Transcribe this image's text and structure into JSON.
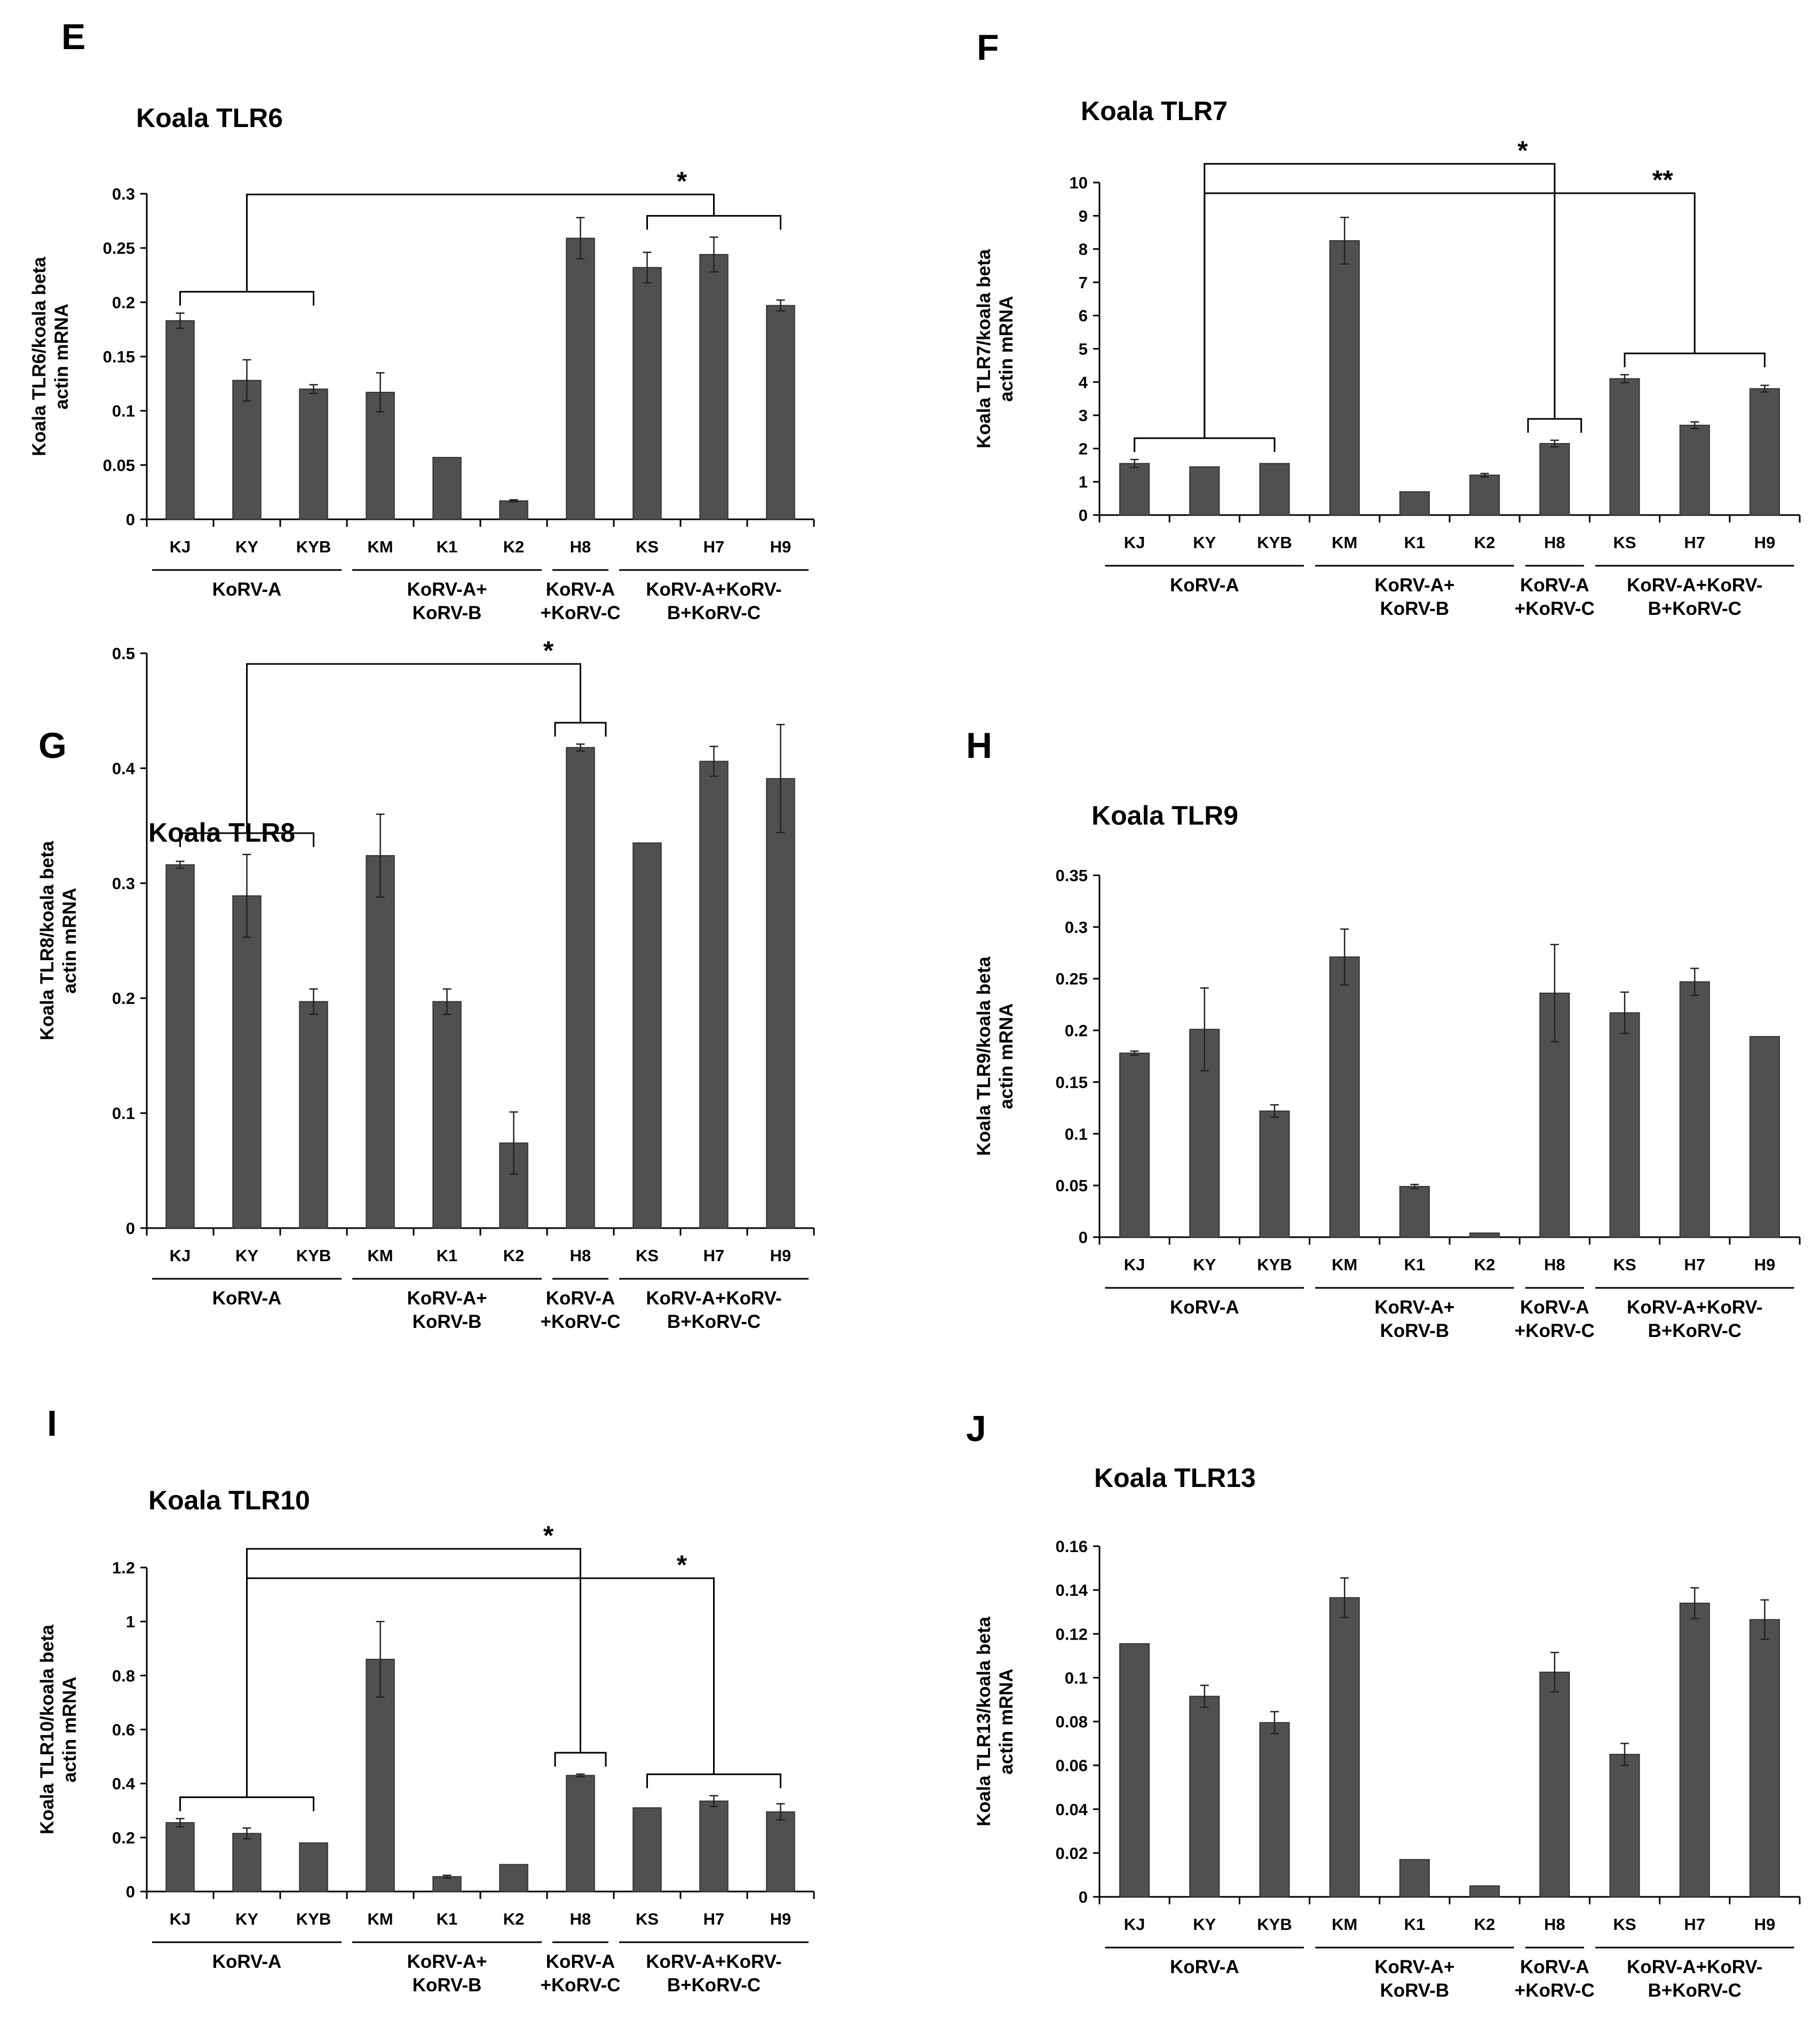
{
  "chart_data": [
    {
      "panel": "E",
      "type": "bar",
      "title": "Koala TLR6",
      "ylabel": [
        "Koala TLR6/koala beta",
        "actin mRNA"
      ],
      "xlabel": "",
      "categories": [
        "KJ",
        "KY",
        "KYB",
        "KM",
        "K1",
        "K2",
        "H8",
        "KS",
        "H7",
        "H9"
      ],
      "values": [
        0.183,
        0.128,
        0.12,
        0.117,
        0.057,
        0.017,
        0.259,
        0.232,
        0.244,
        0.197
      ],
      "errors": [
        0.007,
        0.019,
        0.004,
        0.018,
        0.0,
        0.001,
        0.019,
        0.014,
        0.016,
        0.005
      ],
      "ylim": [
        0,
        0.3
      ],
      "yticks": [
        0,
        0.05,
        0.1,
        0.15,
        0.2,
        0.25,
        0.3
      ],
      "ytick_labels": [
        "0",
        "0.05",
        "0.1",
        "0.15",
        "0.2",
        "0.25",
        "0.3"
      ],
      "groups": [
        {
          "lines": [
            "KoRV-A"
          ],
          "start": 0,
          "end": 2
        },
        {
          "lines": [
            "KoRV-A+",
            "KoRV-B"
          ],
          "start": 3,
          "end": 5
        },
        {
          "lines": [
            "KoRV-A",
            "+KoRV-C"
          ],
          "start": 6,
          "end": 6
        },
        {
          "lines": [
            "KoRV-A+KoRV-",
            "B+KoRV-C"
          ],
          "start": 7,
          "end": 9
        }
      ],
      "significance": [
        {
          "label": "*",
          "from": [
            0,
            2
          ],
          "to": [
            7,
            9
          ]
        }
      ]
    },
    {
      "panel": "F",
      "type": "bar",
      "title": "Koala TLR7",
      "ylabel": [
        "Koala TLR7/koala beta",
        "actin mRNA"
      ],
      "xlabel": "",
      "categories": [
        "KJ",
        "KY",
        "KYB",
        "KM",
        "K1",
        "K2",
        "H8",
        "KS",
        "H7",
        "H9"
      ],
      "values": [
        1.55,
        1.45,
        1.55,
        8.25,
        0.7,
        1.2,
        2.15,
        4.1,
        2.7,
        3.8
      ],
      "errors": [
        0.12,
        0.0,
        0.0,
        0.7,
        0.0,
        0.05,
        0.1,
        0.12,
        0.1,
        0.1
      ],
      "ylim": [
        0,
        10
      ],
      "yticks": [
        0,
        1,
        2,
        3,
        4,
        5,
        6,
        7,
        8,
        9,
        10
      ],
      "ytick_labels": [
        "0",
        "1",
        "2",
        "3",
        "4",
        "5",
        "6",
        "7",
        "8",
        "9",
        "10"
      ],
      "groups": [
        {
          "lines": [
            "KoRV-A"
          ],
          "start": 0,
          "end": 2
        },
        {
          "lines": [
            "KoRV-A+",
            "KoRV-B"
          ],
          "start": 3,
          "end": 5
        },
        {
          "lines": [
            "KoRV-A",
            "+KoRV-C"
          ],
          "start": 6,
          "end": 6
        },
        {
          "lines": [
            "KoRV-A+KoRV-",
            "B+KoRV-C"
          ],
          "start": 7,
          "end": 9
        }
      ],
      "significance": [
        {
          "label": "**",
          "from": [
            0,
            2
          ],
          "to": [
            7,
            9
          ]
        },
        {
          "label": "*",
          "from": [
            0,
            2
          ],
          "to": [
            6,
            6
          ]
        }
      ]
    },
    {
      "panel": "G",
      "type": "bar",
      "title": "Koala TLR8",
      "ylabel": [
        "Koala TLR8/koala beta",
        "actin mRNA"
      ],
      "xlabel": "",
      "categories": [
        "KJ",
        "KY",
        "KYB",
        "KM",
        "K1",
        "K2",
        "H8",
        "KS",
        "H7",
        "H9"
      ],
      "values": [
        0.316,
        0.289,
        0.197,
        0.324,
        0.197,
        0.074,
        0.418,
        0.335,
        0.406,
        0.391
      ],
      "errors": [
        0.003,
        0.036,
        0.011,
        0.036,
        0.011,
        0.027,
        0.003,
        0.0,
        0.013,
        0.047
      ],
      "ylim": [
        0,
        0.5
      ],
      "yticks": [
        0,
        0.1,
        0.2,
        0.3,
        0.4,
        0.5
      ],
      "ytick_labels": [
        "0",
        "0.1",
        "0.2",
        "0.3",
        "0.4",
        "0.5"
      ],
      "groups": [
        {
          "lines": [
            "KoRV-A"
          ],
          "start": 0,
          "end": 2
        },
        {
          "lines": [
            "KoRV-A+",
            "KoRV-B"
          ],
          "start": 3,
          "end": 5
        },
        {
          "lines": [
            "KoRV-A",
            "+KoRV-C"
          ],
          "start": 6,
          "end": 6
        },
        {
          "lines": [
            "KoRV-A+KoRV-",
            "B+KoRV-C"
          ],
          "start": 7,
          "end": 9
        }
      ],
      "significance": [
        {
          "label": "*",
          "from": [
            0,
            2
          ],
          "to": [
            6,
            6
          ]
        }
      ]
    },
    {
      "panel": "H",
      "type": "bar",
      "title": "Koala TLR9",
      "ylabel": [
        "Koala TLR9/koala beta",
        "actin mRNA"
      ],
      "xlabel": "",
      "categories": [
        "KJ",
        "KY",
        "KYB",
        "KM",
        "K1",
        "K2",
        "H8",
        "KS",
        "H7",
        "H9"
      ],
      "values": [
        0.178,
        0.201,
        0.122,
        0.271,
        0.049,
        0.004,
        0.236,
        0.217,
        0.247,
        0.194
      ],
      "errors": [
        0.002,
        0.04,
        0.006,
        0.027,
        0.002,
        0.0,
        0.047,
        0.02,
        0.013,
        0.0
      ],
      "ylim": [
        0,
        0.35
      ],
      "yticks": [
        0,
        0.05,
        0.1,
        0.15,
        0.2,
        0.25,
        0.3,
        0.35
      ],
      "ytick_labels": [
        "0",
        "0.05",
        "0.1",
        "0.15",
        "0.2",
        "0.25",
        "0.3",
        "0.35"
      ],
      "groups": [
        {
          "lines": [
            "KoRV-A"
          ],
          "start": 0,
          "end": 2
        },
        {
          "lines": [
            "KoRV-A+",
            "KoRV-B"
          ],
          "start": 3,
          "end": 5
        },
        {
          "lines": [
            "KoRV-A",
            "+KoRV-C"
          ],
          "start": 6,
          "end": 6
        },
        {
          "lines": [
            "KoRV-A+KoRV-",
            "B+KoRV-C"
          ],
          "start": 7,
          "end": 9
        }
      ],
      "significance": []
    },
    {
      "panel": "I",
      "type": "bar",
      "title": "Koala TLR10",
      "ylabel": [
        "Koala TLR10/koala beta",
        "actin mRNA"
      ],
      "xlabel": "",
      "categories": [
        "KJ",
        "KY",
        "KYB",
        "KM",
        "K1",
        "K2",
        "H8",
        "KS",
        "H7",
        "H9"
      ],
      "values": [
        0.255,
        0.215,
        0.18,
        0.86,
        0.055,
        0.1,
        0.43,
        0.31,
        0.335,
        0.295
      ],
      "errors": [
        0.015,
        0.02,
        0.0,
        0.14,
        0.005,
        0.0,
        0.005,
        0.0,
        0.02,
        0.03
      ],
      "ylim": [
        0,
        1.2
      ],
      "yticks": [
        0,
        0.2,
        0.4,
        0.6,
        0.8,
        1,
        1.2
      ],
      "ytick_labels": [
        "0",
        "0.2",
        "0.4",
        "0.6",
        "0.8",
        "1",
        "1.2"
      ],
      "groups": [
        {
          "lines": [
            "KoRV-A"
          ],
          "start": 0,
          "end": 2
        },
        {
          "lines": [
            "KoRV-A+",
            "KoRV-B"
          ],
          "start": 3,
          "end": 5
        },
        {
          "lines": [
            "KoRV-A",
            "+KoRV-C"
          ],
          "start": 6,
          "end": 6
        },
        {
          "lines": [
            "KoRV-A+KoRV-",
            "B+KoRV-C"
          ],
          "start": 7,
          "end": 9
        }
      ],
      "significance": [
        {
          "label": "*",
          "from": [
            0,
            2
          ],
          "to": [
            7,
            9
          ]
        },
        {
          "label": "*",
          "from": [
            0,
            2
          ],
          "to": [
            6,
            6
          ]
        }
      ]
    },
    {
      "panel": "J",
      "type": "bar",
      "title": "Koala TLR13",
      "ylabel": [
        "Koala TLR13/koala beta",
        "actin mRNA"
      ],
      "xlabel": "",
      "categories": [
        "KJ",
        "KY",
        "KYB",
        "KM",
        "K1",
        "K2",
        "H8",
        "KS",
        "H7",
        "H9"
      ],
      "values": [
        0.1155,
        0.0915,
        0.0795,
        0.1365,
        0.017,
        0.005,
        0.1025,
        0.065,
        0.134,
        0.1265
      ],
      "errors": [
        0.0,
        0.005,
        0.005,
        0.009,
        0.0,
        0.0,
        0.009,
        0.005,
        0.007,
        0.009
      ],
      "ylim": [
        0,
        0.16
      ],
      "yticks": [
        0,
        0.02,
        0.04,
        0.06,
        0.08,
        0.1,
        0.12,
        0.14,
        0.16
      ],
      "ytick_labels": [
        "0",
        "0.02",
        "0.04",
        "0.06",
        "0.08",
        "0.1",
        "0.12",
        "0.14",
        "0.16"
      ],
      "groups": [
        {
          "lines": [
            "KoRV-A"
          ],
          "start": 0,
          "end": 2
        },
        {
          "lines": [
            "KoRV-A+",
            "KoRV-B"
          ],
          "start": 3,
          "end": 5
        },
        {
          "lines": [
            "KoRV-A",
            "+KoRV-C"
          ],
          "start": 6,
          "end": 6
        },
        {
          "lines": [
            "KoRV-A+KoRV-",
            "B+KoRV-C"
          ],
          "start": 7,
          "end": 9
        }
      ],
      "significance": []
    }
  ]
}
